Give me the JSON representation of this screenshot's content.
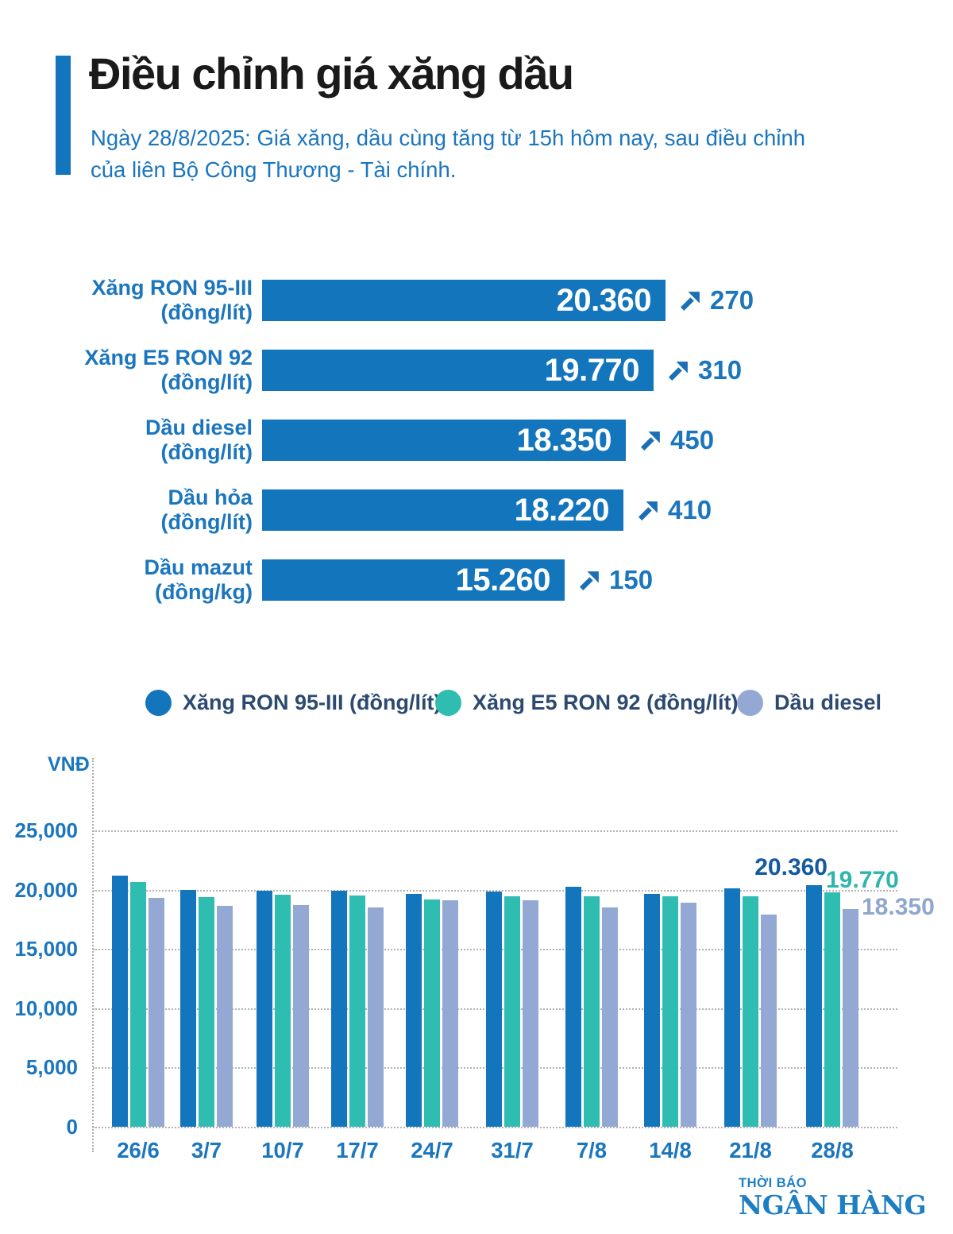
{
  "header": {
    "title": "Điều chỉnh giá xăng dầu",
    "subtitle": "Ngày 28/8/2025: Giá xăng, dầu cùng tăng từ 15h hôm nay, sau điều chỉnh của liên Bộ Công Thương - Tài chính."
  },
  "colors": {
    "blue": "#1375BC",
    "teal": "#2FBDB2",
    "periwinkle": "#93A9D4",
    "text_blue": "#1B76BD",
    "legend_text": "#2C4A70",
    "annotation_blue": "#15599F",
    "logo_blue": "#1C7EC3"
  },
  "top_chart": {
    "rows": [
      {
        "name": "Xăng RON 95-III",
        "unit": "(đồng/lít)",
        "value": 20360,
        "value_display": "20.360",
        "change": "270"
      },
      {
        "name": "Xăng E5 RON 92",
        "unit": "(đồng/lít)",
        "value": 19770,
        "value_display": "19.770",
        "change": "310"
      },
      {
        "name": "Dầu diesel",
        "unit": "(đồng/lít)",
        "value": 18350,
        "value_display": "18.350",
        "change": "450"
      },
      {
        "name": "Dầu hỏa",
        "unit": "(đồng/lít)",
        "value": 18220,
        "value_display": "18.220",
        "change": "410"
      },
      {
        "name": "Dầu mazut",
        "unit": "(đồng/kg)",
        "value": 15260,
        "value_display": "15.260",
        "change": "150"
      }
    ]
  },
  "legend": {
    "items": [
      {
        "label": "Xăng RON 95-III (đồng/lít)",
        "color": "#1375BC"
      },
      {
        "label": "Xăng E5 RON 92 (đồng/lít)",
        "color": "#2FBDB2"
      },
      {
        "label": "Dầu diesel",
        "color": "#93A9D4"
      }
    ]
  },
  "chart_data": {
    "type": "bar",
    "ylabel": "VNĐ",
    "ylim": [
      0,
      25000
    ],
    "grid": "horizontal-dotted",
    "legend_position": "top",
    "ytick_labels": [
      "25,000",
      "20,000",
      "15,000",
      "10,000",
      "5,000",
      "0"
    ],
    "categories": [
      "26/6",
      "3/7",
      "10/7",
      "17/7",
      "24/7",
      "31/7",
      "7/8",
      "14/8",
      "21/8",
      "28/8"
    ],
    "series": [
      {
        "name": "Xăng RON 95-III (đồng/lít)",
        "color": "#1375BC",
        "values": [
          21200,
          20000,
          19930,
          19930,
          19670,
          19870,
          20270,
          19670,
          20090,
          20360
        ]
      },
      {
        "name": "Xăng E5 RON 92 (đồng/lít)",
        "color": "#2FBDB2",
        "values": [
          20670,
          19400,
          19600,
          19530,
          19200,
          19470,
          19470,
          19470,
          19460,
          19770
        ]
      },
      {
        "name": "Dầu diesel",
        "color": "#93A9D4",
        "values": [
          19270,
          18600,
          18730,
          18530,
          19070,
          19070,
          18530,
          18930,
          17900,
          18350
        ]
      }
    ],
    "annotations": [
      {
        "text": "20.360",
        "series": "Xăng RON 95-III (đồng/lít)",
        "category": "28/8",
        "color": "#15599F"
      },
      {
        "text": "19.770",
        "series": "Xăng E5 RON 92 (đồng/lít)",
        "category": "28/8",
        "color": "#2FB5AB"
      },
      {
        "text": "18.350",
        "series": "Dầu diesel",
        "category": "28/8",
        "color": "#8FA6CE"
      }
    ]
  },
  "logo": {
    "line1": "THỜI BÁO",
    "line2": "NGÂN HÀNG"
  }
}
